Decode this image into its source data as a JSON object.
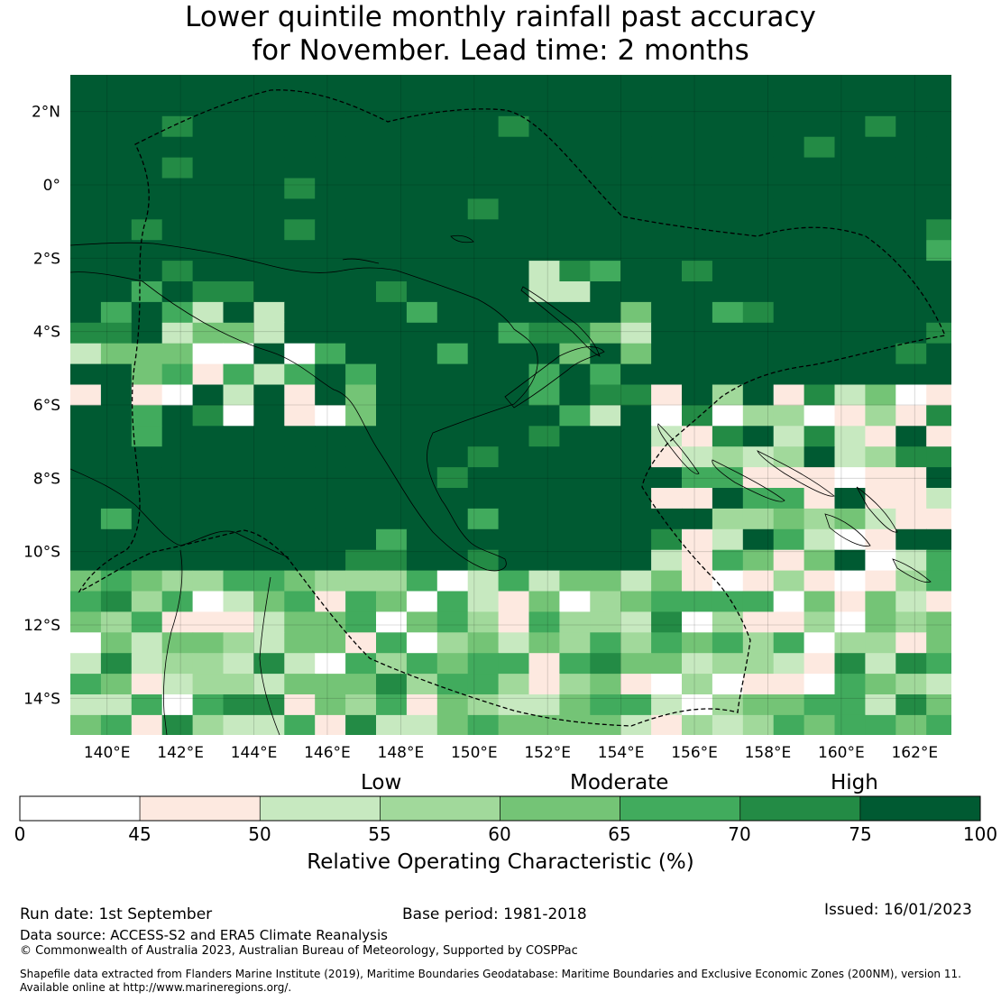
{
  "title": {
    "line1": "Lower quintile monthly rainfall past accuracy",
    "line2": "for November. Lead time: 2 months"
  },
  "map": {
    "lon_labels": [
      "140°E",
      "142°E",
      "144°E",
      "146°E",
      "148°E",
      "150°E",
      "152°E",
      "154°E",
      "156°E",
      "158°E",
      "160°E",
      "162°E"
    ],
    "lat_labels": [
      "2°N",
      "0°",
      "2°S",
      "4°S",
      "6°S",
      "8°S",
      "10°S",
      "12°S",
      "14°S"
    ],
    "lon_range": [
      139.0,
      163.0
    ],
    "lat_range": [
      -15.0,
      3.0
    ],
    "grid_resolution_deg": 0.8,
    "dominant_category": "75-100 (High)",
    "features": [
      "coastlines",
      "EEZ maritime boundary (dashed)"
    ]
  },
  "colorbar": {
    "categories": [
      "Low",
      "Moderate",
      "High"
    ],
    "ticks": [
      "0",
      "45",
      "50",
      "55",
      "60",
      "65",
      "70",
      "75",
      "100"
    ],
    "colors": [
      "#ffffff",
      "#fde9e0",
      "#c7e9c0",
      "#a1d99b",
      "#74c476",
      "#41ab5d",
      "#238b45",
      "#005a32"
    ],
    "label": "Relative Operating Characteristic (%)"
  },
  "footer": {
    "run_date": "Run date: 1st September",
    "base_period": "Base period: 1981-2018",
    "issued": "Issued: 16/01/2023",
    "data_source": "Data source: ACCESS-S2 and ERA5 Climate Reanalysis",
    "copyright": "© Commonwealth of Australia 2023, Australian Bureau of Meteorology, Supported by COSPPac",
    "shapefile_line1": "Shapefile data extracted from Flanders Marine Institute (2019), Maritime Boundaries Geodatabase: Maritime Boundaries and Exclusive Economic Zones (200NM), version 11.",
    "shapefile_line2": "Available online at http://www.marineregions.org/."
  }
}
